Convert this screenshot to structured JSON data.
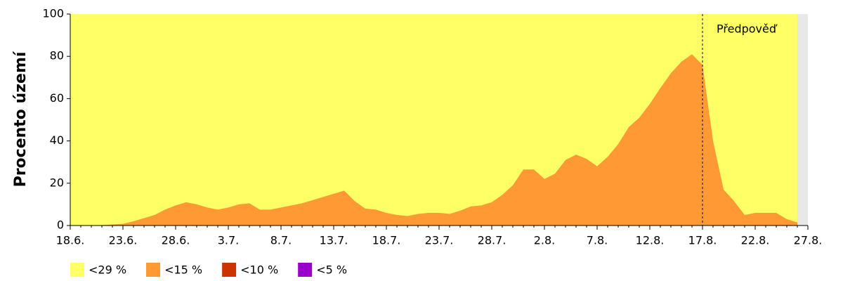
{
  "chart_data": {
    "type": "area",
    "y_label": "Procento území",
    "categories": [
      "18.6.",
      null,
      null,
      null,
      null,
      "23.6.",
      null,
      null,
      null,
      null,
      "28.6.",
      null,
      null,
      null,
      null,
      "3.7.",
      null,
      null,
      null,
      null,
      "8.7.",
      null,
      null,
      null,
      null,
      "13.7.",
      null,
      null,
      null,
      null,
      "18.7.",
      null,
      null,
      null,
      null,
      "23.7.",
      null,
      null,
      null,
      null,
      "28.7.",
      null,
      null,
      null,
      null,
      "2.8.",
      null,
      null,
      null,
      null,
      "7.8.",
      null,
      null,
      null,
      null,
      "12.8.",
      null,
      null,
      null,
      null,
      "17.8.",
      null,
      null,
      null,
      null,
      "22.8.",
      null,
      null,
      null,
      null,
      "27.8."
    ],
    "series": [
      {
        "name": "<29 %",
        "color": "#ffff66",
        "values": [
          100,
          100,
          100,
          100,
          100,
          100,
          100,
          100,
          100,
          100,
          100,
          100,
          100,
          100,
          100,
          100,
          100,
          100,
          100,
          100,
          100,
          100,
          100,
          100,
          100,
          100,
          100,
          100,
          100,
          100,
          100,
          100,
          100,
          100,
          100,
          100,
          100,
          100,
          100,
          100,
          100,
          100,
          100,
          100,
          100,
          100,
          100,
          100,
          100,
          100,
          100,
          100,
          100,
          100,
          100,
          100,
          100,
          100,
          100,
          100,
          100,
          100,
          100,
          100,
          100,
          100,
          100,
          100,
          100,
          100,
          null
        ]
      },
      {
        "name": "<15 %",
        "color": "#ff9933",
        "values": [
          0,
          0,
          0,
          0.2,
          0.5,
          0.8,
          2,
          3.5,
          5,
          7.5,
          9.5,
          11,
          10,
          8.5,
          7.5,
          8.5,
          10,
          10.5,
          7.5,
          7.5,
          8.5,
          9.5,
          10.5,
          12,
          13.5,
          15,
          16.5,
          11.5,
          8,
          7.5,
          6,
          5,
          4.5,
          5.5,
          6,
          6,
          5.5,
          7,
          9,
          9.5,
          11,
          14.5,
          19,
          26.5,
          26.5,
          22,
          24.5,
          31,
          33.5,
          31.5,
          28,
          32.5,
          38.5,
          46.5,
          51,
          57.5,
          65,
          72,
          77.5,
          81,
          76,
          40,
          17,
          11.5,
          5,
          6,
          6,
          6,
          3,
          1.5,
          null
        ]
      },
      {
        "name": "<10 %",
        "color": "#cc3300",
        "values": [
          0,
          0,
          0,
          0,
          0,
          0,
          0,
          0,
          0,
          0,
          0,
          0,
          0,
          0,
          0,
          0,
          0,
          0,
          0,
          0,
          0,
          0,
          0,
          0,
          0,
          0,
          0,
          0,
          0,
          0,
          0,
          0,
          0,
          0,
          0,
          0,
          0,
          0,
          0,
          0,
          0,
          0,
          0,
          0,
          0,
          0,
          0,
          0,
          0,
          0,
          0,
          0,
          0,
          0,
          0,
          0,
          0,
          0,
          0,
          0,
          0,
          0,
          0,
          0,
          0,
          0,
          0,
          0,
          0,
          0,
          null
        ]
      },
      {
        "name": "<5 %",
        "color": "#9900cc",
        "values": [
          0,
          0,
          0,
          0,
          0,
          0,
          0,
          0,
          0,
          0,
          0,
          0,
          0,
          0,
          0,
          0,
          0,
          0,
          0,
          0,
          0,
          0,
          0,
          0,
          0,
          0,
          0,
          0,
          0,
          0,
          0,
          0,
          0,
          0,
          0,
          0,
          0,
          0,
          0,
          0,
          0,
          0,
          0,
          0,
          0,
          0,
          0,
          0,
          0,
          0,
          0,
          0,
          0,
          0,
          0,
          0,
          0,
          0,
          0,
          0,
          0,
          0,
          0,
          0,
          0,
          0,
          0,
          0,
          0,
          0,
          null
        ]
      }
    ],
    "ylim": [
      0,
      100
    ],
    "yticks": [
      0,
      20,
      40,
      60,
      80,
      100
    ],
    "annotation": {
      "text": "Předpověď",
      "at": 60
    }
  }
}
